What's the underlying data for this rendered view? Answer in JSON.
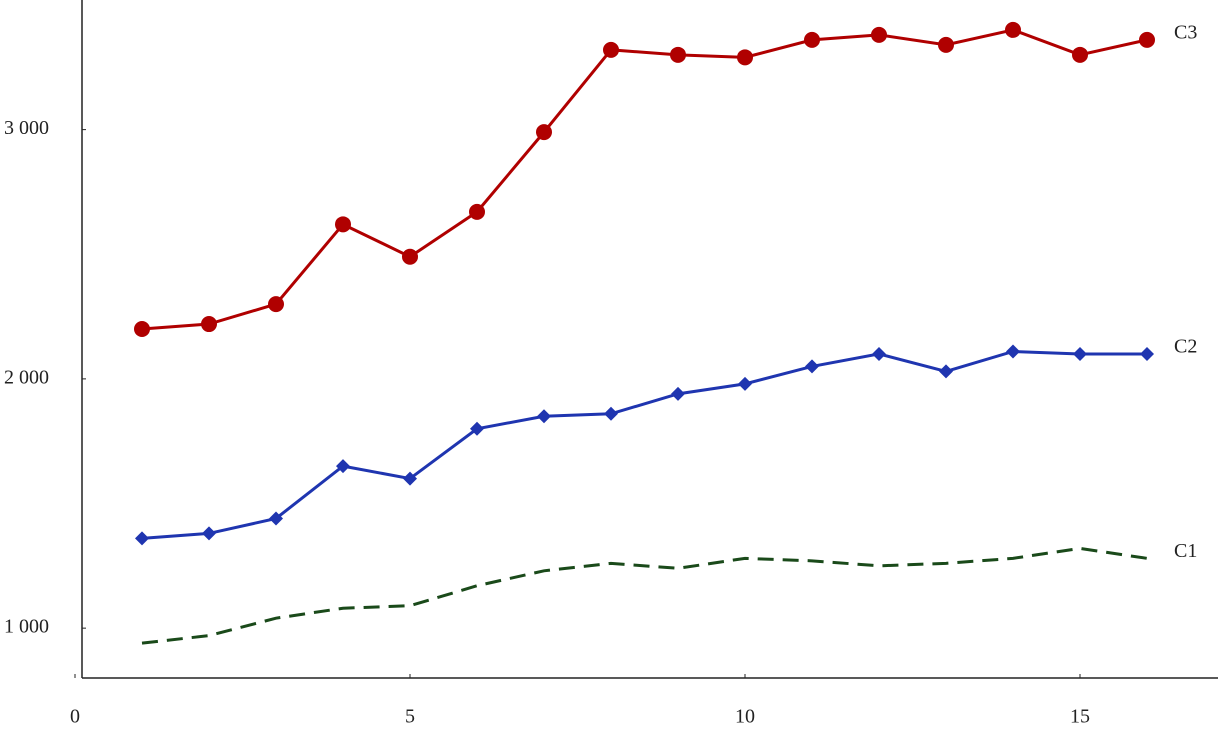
{
  "chart_data": {
    "type": "line",
    "x": [
      1,
      2,
      3,
      4,
      5,
      6,
      7,
      8,
      9,
      10,
      11,
      12,
      13,
      14,
      15,
      16
    ],
    "series": [
      {
        "name": "C3",
        "color": "#b00000",
        "marker": "circle",
        "dashed": false,
        "values": [
          2200,
          2220,
          2300,
          2620,
          2490,
          2670,
          2990,
          3320,
          3300,
          3290,
          3360,
          3380,
          3340,
          3400,
          3300,
          3360
        ]
      },
      {
        "name": "C2",
        "color": "#1f35b0",
        "marker": "diamond",
        "dashed": false,
        "values": [
          1360,
          1380,
          1440,
          1650,
          1600,
          1800,
          1850,
          1860,
          1940,
          1980,
          2050,
          2100,
          2030,
          2110,
          2100,
          2100
        ]
      },
      {
        "name": "C1",
        "color": "#1a4a1a",
        "marker": "none",
        "dashed": true,
        "values": [
          940,
          970,
          1040,
          1080,
          1090,
          1170,
          1230,
          1260,
          1240,
          1280,
          1270,
          1250,
          1260,
          1280,
          1320,
          1280
        ]
      }
    ],
    "xlim": [
      0,
      17
    ],
    "xticks": [
      0,
      5,
      10,
      15
    ],
    "ylim": [
      800,
      3520
    ],
    "yticks": [
      {
        "value": 1000,
        "label": "1 000"
      },
      {
        "value": 2000,
        "label": "2 000"
      },
      {
        "value": 3000,
        "label": "3 000"
      }
    ]
  }
}
